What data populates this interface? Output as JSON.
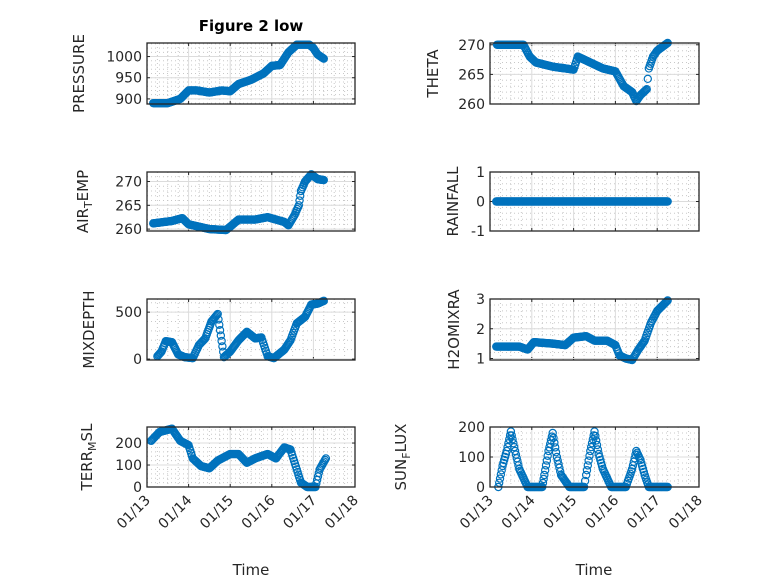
{
  "title": "Figure 2 low",
  "xlabel": "Time",
  "marker_color": "#0072BD",
  "chart_data": {
    "type": "scatter",
    "x_unit": "days since 01/13 00:00",
    "xlim": [
      0,
      5
    ],
    "x_tick_labels": [
      "01/13",
      "01/14",
      "01/15",
      "01/16",
      "01/17",
      "01/18"
    ],
    "grid": true,
    "panels": [
      {
        "ylabel": "PRESSURE",
        "ylim": [
          888,
          1032
        ],
        "yticks": [
          900,
          950,
          1000
        ],
        "points": [
          [
            0.15,
            890
          ],
          [
            0.5,
            890
          ],
          [
            0.8,
            900
          ],
          [
            1.0,
            920
          ],
          [
            1.2,
            920
          ],
          [
            1.5,
            915
          ],
          [
            1.8,
            920
          ],
          [
            2.0,
            918
          ],
          [
            2.2,
            935
          ],
          [
            2.5,
            945
          ],
          [
            2.8,
            960
          ],
          [
            3.0,
            978
          ],
          [
            3.2,
            980
          ],
          [
            3.4,
            1010
          ],
          [
            3.6,
            1028
          ],
          [
            3.9,
            1028
          ],
          [
            4.0,
            1020
          ],
          [
            4.1,
            1005
          ],
          [
            4.25,
            995
          ]
        ]
      },
      {
        "ylabel": "THETA",
        "ylim": [
          260,
          270.3
        ],
        "yticks": [
          260,
          265,
          270
        ],
        "points": [
          [
            0.17,
            270
          ],
          [
            0.8,
            270
          ],
          [
            0.95,
            268
          ],
          [
            1.1,
            267
          ],
          [
            1.5,
            266.3
          ],
          [
            1.8,
            266
          ],
          [
            2.0,
            265.8
          ],
          [
            2.1,
            268
          ],
          [
            2.4,
            267
          ],
          [
            2.7,
            266
          ],
          [
            3.0,
            265.5
          ],
          [
            3.2,
            263
          ],
          [
            3.4,
            262
          ],
          [
            3.5,
            260.5
          ],
          [
            3.6,
            261.5
          ],
          [
            3.75,
            262.5
          ],
          [
            3.8,
            266
          ],
          [
            3.9,
            268
          ],
          [
            4.0,
            269
          ],
          [
            4.25,
            270.3
          ]
        ]
      },
      {
        "ylabel": "AIR_TEMP",
        "ylim": [
          259.6,
          272
        ],
        "yticks": [
          260,
          265,
          270
        ],
        "points": [
          [
            0.15,
            261.2
          ],
          [
            0.6,
            261.7
          ],
          [
            0.85,
            262.3
          ],
          [
            1.0,
            261
          ],
          [
            1.5,
            260
          ],
          [
            1.9,
            259.8
          ],
          [
            2.0,
            260.5
          ],
          [
            2.2,
            262
          ],
          [
            2.6,
            262
          ],
          [
            2.9,
            262.5
          ],
          [
            3.1,
            262
          ],
          [
            3.3,
            261.5
          ],
          [
            3.4,
            260.8
          ],
          [
            3.55,
            263
          ],
          [
            3.65,
            265
          ],
          [
            3.7,
            268
          ],
          [
            3.8,
            270
          ],
          [
            3.95,
            271.5
          ],
          [
            4.1,
            270.5
          ],
          [
            4.25,
            270.3
          ]
        ]
      },
      {
        "ylabel": "RAINFALL",
        "ylim": [
          -1,
          1
        ],
        "yticks": [
          -1,
          0,
          1
        ],
        "points": [
          [
            0.15,
            0
          ],
          [
            4.25,
            0
          ]
        ]
      },
      {
        "ylabel": "MIXDEPTH",
        "ylim": [
          -10,
          640
        ],
        "yticks": [
          0,
          500
        ],
        "points": [
          [
            0.25,
            30
          ],
          [
            0.35,
            80
          ],
          [
            0.45,
            190
          ],
          [
            0.6,
            180
          ],
          [
            0.75,
            50
          ],
          [
            0.9,
            20
          ],
          [
            1.1,
            10
          ],
          [
            1.25,
            150
          ],
          [
            1.4,
            220
          ],
          [
            1.55,
            400
          ],
          [
            1.7,
            480
          ],
          [
            1.85,
            20
          ],
          [
            2.0,
            80
          ],
          [
            2.2,
            200
          ],
          [
            2.4,
            290
          ],
          [
            2.6,
            220
          ],
          [
            2.75,
            230
          ],
          [
            2.9,
            30
          ],
          [
            3.05,
            10
          ],
          [
            3.3,
            100
          ],
          [
            3.45,
            200
          ],
          [
            3.6,
            380
          ],
          [
            3.8,
            450
          ],
          [
            3.95,
            580
          ],
          [
            4.1,
            590
          ],
          [
            4.25,
            620
          ]
        ]
      },
      {
        "ylabel": "H2OMIXRA",
        "ylim": [
          0.95,
          3
        ],
        "yticks": [
          1,
          2,
          3
        ],
        "points": [
          [
            0.15,
            1.4
          ],
          [
            0.7,
            1.4
          ],
          [
            0.9,
            1.3
          ],
          [
            1.05,
            1.55
          ],
          [
            1.5,
            1.5
          ],
          [
            1.8,
            1.45
          ],
          [
            2.0,
            1.7
          ],
          [
            2.3,
            1.75
          ],
          [
            2.5,
            1.6
          ],
          [
            2.8,
            1.6
          ],
          [
            3.0,
            1.45
          ],
          [
            3.1,
            1.1
          ],
          [
            3.25,
            1.0
          ],
          [
            3.4,
            0.95
          ],
          [
            3.55,
            1.3
          ],
          [
            3.7,
            1.6
          ],
          [
            3.85,
            2.2
          ],
          [
            4.0,
            2.6
          ],
          [
            4.25,
            2.95
          ]
        ]
      },
      {
        "ylabel": "TERR_MSL",
        "ylim": [
          0,
          273
        ],
        "yticks": [
          0,
          100,
          200
        ],
        "points": [
          [
            0.1,
            210
          ],
          [
            0.3,
            250
          ],
          [
            0.6,
            265
          ],
          [
            0.8,
            210
          ],
          [
            1.0,
            190
          ],
          [
            1.1,
            130
          ],
          [
            1.3,
            95
          ],
          [
            1.5,
            85
          ],
          [
            1.7,
            120
          ],
          [
            2.0,
            150
          ],
          [
            2.2,
            150
          ],
          [
            2.4,
            110
          ],
          [
            2.6,
            130
          ],
          [
            2.9,
            150
          ],
          [
            3.1,
            130
          ],
          [
            3.3,
            180
          ],
          [
            3.45,
            170
          ],
          [
            3.6,
            80
          ],
          [
            3.7,
            20
          ],
          [
            3.85,
            0
          ],
          [
            4.05,
            0
          ],
          [
            4.15,
            80
          ],
          [
            4.3,
            130
          ]
        ]
      },
      {
        "ylabel": "SUN_FLUX",
        "ylim": [
          0,
          200
        ],
        "yticks": [
          0,
          100,
          200
        ],
        "points": [
          [
            0.2,
            0
          ],
          [
            0.3,
            70
          ],
          [
            0.4,
            120
          ],
          [
            0.5,
            185
          ],
          [
            0.6,
            120
          ],
          [
            0.7,
            60
          ],
          [
            0.9,
            0
          ],
          [
            1.25,
            0
          ],
          [
            1.3,
            40
          ],
          [
            1.4,
            120
          ],
          [
            1.5,
            180
          ],
          [
            1.6,
            100
          ],
          [
            1.7,
            40
          ],
          [
            1.9,
            0
          ],
          [
            2.25,
            0
          ],
          [
            2.3,
            40
          ],
          [
            2.4,
            120
          ],
          [
            2.5,
            185
          ],
          [
            2.6,
            110
          ],
          [
            2.7,
            60
          ],
          [
            2.9,
            0
          ],
          [
            3.25,
            0
          ],
          [
            3.3,
            20
          ],
          [
            3.4,
            60
          ],
          [
            3.5,
            120
          ],
          [
            3.6,
            90
          ],
          [
            3.7,
            40
          ],
          [
            3.8,
            0
          ],
          [
            4.25,
            0
          ]
        ]
      }
    ]
  }
}
